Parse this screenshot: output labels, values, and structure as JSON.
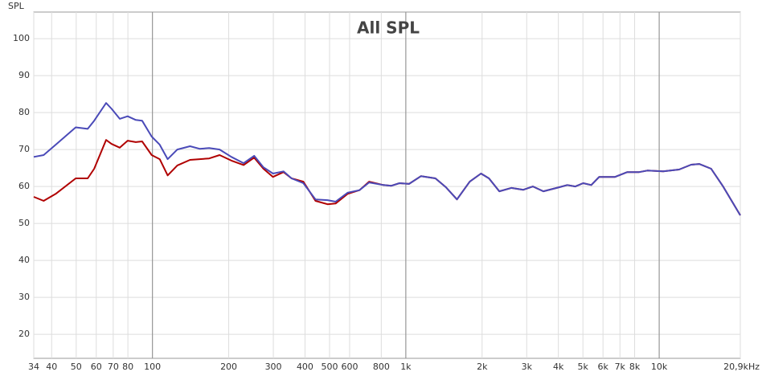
{
  "chart_data": {
    "type": "line",
    "title": "All SPL",
    "y_label": "SPL",
    "log_x": true,
    "grid": true,
    "xlim": [
      34,
      20900
    ],
    "ylim": [
      13.5,
      107.2
    ],
    "yticks": [
      20,
      30,
      40,
      50,
      60,
      70,
      80,
      90,
      100
    ],
    "xticks": [
      34,
      40,
      50,
      60,
      70,
      80,
      100,
      200,
      300,
      400,
      500,
      600,
      800,
      {
        "value": 1000,
        "label": "1k"
      },
      {
        "value": 2000,
        "label": "2k"
      },
      {
        "value": 3000,
        "label": "3k"
      },
      {
        "value": 4000,
        "label": "4k"
      },
      {
        "value": 5000,
        "label": "5k"
      },
      {
        "value": 6000,
        "label": "6k"
      },
      {
        "value": 7000,
        "label": "7k"
      },
      {
        "value": 8000,
        "label": "8k"
      },
      {
        "value": 10000,
        "label": "10k"
      },
      {
        "value": 20900,
        "label": "20,9kHz"
      }
    ],
    "major_xticks": [
      100,
      1000,
      10000
    ],
    "x": [
      34,
      37.2,
      41.5,
      49.8,
      55.5,
      58.9,
      65.6,
      69,
      74.3,
      79.8,
      85.9,
      91,
      99.3,
      106.8,
      114.8,
      125.3,
      140.7,
      153.6,
      167.4,
      184,
      205,
      229,
      252,
      274,
      299,
      329,
      354,
      394,
      440,
      491,
      528,
      589,
      656,
      716,
      816,
      877,
      944,
      1030,
      1148,
      1309,
      1439,
      1592,
      1788,
      1980,
      2128,
      2339,
      2608,
      2909,
      3175,
      3490,
      4036,
      4339,
      4667,
      5012,
      5395,
      5794,
      6699,
      7482,
      8339,
      8974,
      10370,
      11990,
      13370,
      14390,
      16030,
      17870,
      20900
    ],
    "series": [
      {
        "name": "Red",
        "color": "#b00000",
        "values": [
          57.2,
          56.1,
          58,
          62.2,
          62.2,
          64.8,
          72.6,
          71.5,
          70.5,
          72.4,
          72,
          72.2,
          68.5,
          67.4,
          63,
          65.7,
          67.2,
          67.4,
          67.6,
          68.5,
          67,
          65.8,
          67.8,
          64.8,
          62.6,
          63.9,
          62.2,
          61.3,
          56.1,
          55.2,
          55.4,
          58,
          59,
          61.3,
          60.4,
          60.2,
          60.9,
          60.7,
          62.8,
          62.2,
          59.8,
          56.5,
          61.3,
          63.5,
          62.2,
          58.7,
          59.6,
          59.1,
          60,
          58.7,
          59.8,
          60.4,
          60,
          60.9,
          60.4,
          62.6,
          62.6,
          63.9,
          63.9,
          64.3,
          64.1,
          64.6,
          65.9,
          66.1,
          64.8,
          60,
          52.2
        ]
      },
      {
        "name": "Blue",
        "color": "#4a4ab8",
        "values": [
          68,
          68.5,
          71.3,
          76,
          75.6,
          77.8,
          82.6,
          81,
          78.3,
          79,
          78,
          77.8,
          73.5,
          71.3,
          67.4,
          70,
          70.9,
          70.2,
          70.4,
          70,
          68,
          66.3,
          68.3,
          65.2,
          63.5,
          64.1,
          62.2,
          60.9,
          56.5,
          56.3,
          55.9,
          58.3,
          59,
          61.1,
          60.4,
          60.2,
          60.9,
          60.7,
          62.8,
          62.2,
          59.8,
          56.5,
          61.3,
          63.5,
          62.2,
          58.7,
          59.6,
          59.1,
          60,
          58.7,
          59.8,
          60.4,
          60,
          60.9,
          60.4,
          62.6,
          62.6,
          63.9,
          63.9,
          64.3,
          64.1,
          64.6,
          65.9,
          66.1,
          64.8,
          60,
          52.2
        ]
      }
    ]
  }
}
